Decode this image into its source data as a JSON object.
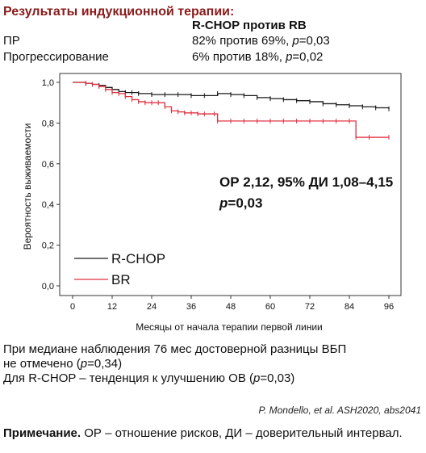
{
  "header": {
    "title": "Результаты индукционной терапии:",
    "column_head": "R-CHOP против RB"
  },
  "table": {
    "rows": [
      {
        "label": "ПР",
        "value_pre": "82% против 69%, ",
        "p_symbol": "p",
        "value_post": "=0,03"
      },
      {
        "label": "Прогрессирование",
        "value_pre": "6% против 18%, ",
        "p_symbol": "p",
        "value_post": "=0,02"
      }
    ]
  },
  "chart_data": {
    "type": "line",
    "xlabel": "Месяцы от начала терапии первой линии",
    "ylabel": "Вероятность выживаемости",
    "xlim": [
      0,
      96
    ],
    "ylim": [
      0,
      1
    ],
    "xticks": [
      0,
      12,
      24,
      36,
      48,
      60,
      72,
      84,
      96
    ],
    "yticks": [
      0,
      0.2,
      0.4,
      0.6,
      0.8,
      1.0
    ],
    "xtick_labels": [
      "0",
      "12",
      "24",
      "36",
      "48",
      "60",
      "72",
      "84",
      "96"
    ],
    "ytick_labels": [
      "0,0",
      "0,2",
      "0,4",
      "0,6",
      "0,8",
      "1,0"
    ],
    "legend_placement": "bottom-left",
    "annotation_line1": "ОР 2,12, 95% ДИ 1,08–4,15",
    "annotation_line2_p": "p",
    "annotation_line2_rest": "=0,03",
    "series": [
      {
        "name": "R-CHOP",
        "color": "#1a1a1a",
        "x": [
          0,
          2,
          4,
          6,
          8,
          10,
          12,
          14,
          16,
          18,
          20,
          24,
          28,
          32,
          36,
          40,
          44,
          48,
          52,
          56,
          60,
          64,
          68,
          72,
          76,
          80,
          84,
          88,
          92,
          96
        ],
        "y": [
          1.0,
          1.0,
          0.995,
          0.99,
          0.985,
          0.975,
          0.965,
          0.955,
          0.95,
          0.95,
          0.945,
          0.94,
          0.94,
          0.94,
          0.935,
          0.935,
          0.945,
          0.94,
          0.935,
          0.925,
          0.92,
          0.915,
          0.91,
          0.905,
          0.895,
          0.89,
          0.885,
          0.88,
          0.875,
          0.87
        ]
      },
      {
        "name": "BR",
        "color": "#e03040",
        "x": [
          0,
          2,
          4,
          6,
          8,
          10,
          12,
          14,
          16,
          18,
          20,
          22,
          24,
          26,
          28,
          30,
          32,
          34,
          36,
          38,
          40,
          43,
          44,
          48,
          52,
          56,
          60,
          64,
          68,
          72,
          76,
          80,
          84,
          86,
          90,
          96
        ],
        "y": [
          1.0,
          1.0,
          0.995,
          0.99,
          0.98,
          0.965,
          0.95,
          0.945,
          0.93,
          0.915,
          0.905,
          0.9,
          0.9,
          0.9,
          0.88,
          0.86,
          0.855,
          0.85,
          0.85,
          0.845,
          0.845,
          0.845,
          0.81,
          0.81,
          0.81,
          0.81,
          0.81,
          0.81,
          0.81,
          0.81,
          0.81,
          0.81,
          0.81,
          0.73,
          0.73,
          0.73
        ]
      }
    ]
  },
  "notes": {
    "line1": "При медиане наблюдения 76 мес достоверной разницы ВБП",
    "line2_pre": "не отмечено (",
    "line2_p": "p",
    "line2_post": "=0,34)",
    "line3_pre": "Для R-CHOP – тенденция к улучшению ОВ (",
    "line3_p": "p",
    "line3_post": "=0,03)"
  },
  "citation": "P. Mondello, et al. ASH2020, abs2041",
  "footnote": {
    "label": "Примечание.",
    "text": " ОР – отношение рисков, ДИ – доверительный интервал."
  }
}
